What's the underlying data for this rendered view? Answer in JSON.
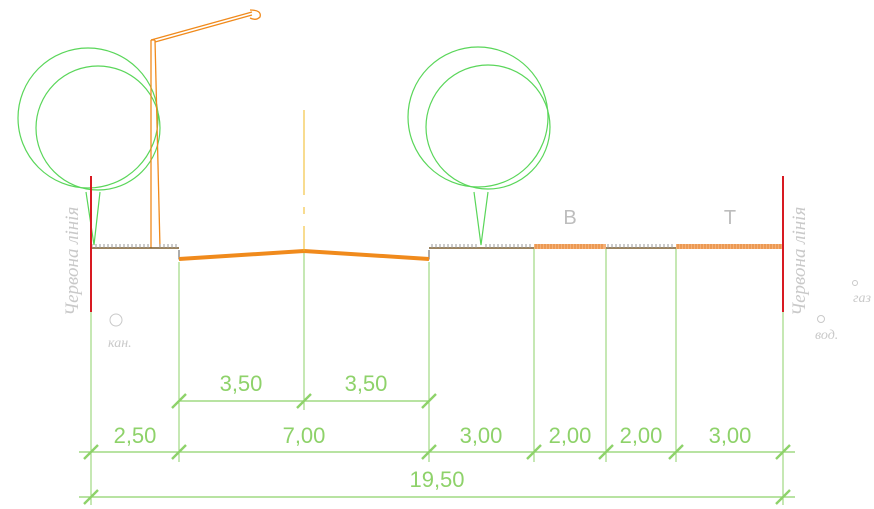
{
  "red_line_label": "Червона лінія",
  "zones": {
    "b": "В",
    "t": "Т"
  },
  "utilities": {
    "sewer": "кан.",
    "water": "вод.",
    "gas": "газ"
  },
  "dims_top": [
    "3,50",
    "3,50"
  ],
  "dims_mid": [
    "2,50",
    "7,00",
    "3,00",
    "2,00",
    "2,00",
    "3,00"
  ],
  "dim_total": "19,50",
  "colors": {
    "green": "#8ed26a",
    "orange": "#f08a1c",
    "red": "#d81a22",
    "hatch": "#9a9a9a",
    "label": "#c9c9c9"
  }
}
